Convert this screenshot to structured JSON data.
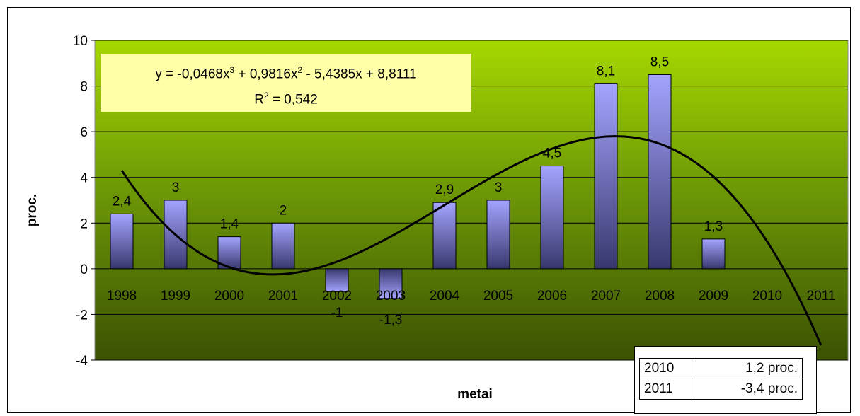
{
  "chart_data": {
    "type": "bar",
    "categories": [
      "1998",
      "1999",
      "2000",
      "2001",
      "2002",
      "2003",
      "2004",
      "2005",
      "2006",
      "2007",
      "2008",
      "2009",
      "2010",
      "2011"
    ],
    "values": [
      2.4,
      3,
      1.4,
      2,
      -1,
      -1.3,
      2.9,
      3,
      4.5,
      8.1,
      8.5,
      1.3,
      null,
      null
    ],
    "data_labels": [
      "2,4",
      "3",
      "1,4",
      "2",
      "-1",
      "-1,3",
      "2,9",
      "3",
      "4,5",
      "8,1",
      "8,5",
      "1,3",
      "",
      ""
    ],
    "ylabel": "proc.",
    "xlabel": "metai",
    "ylim": [
      -4,
      10
    ],
    "yticks": [
      10,
      8,
      6,
      4,
      2,
      0,
      -2,
      -4
    ],
    "ytick_labels": [
      "10",
      "8",
      "6",
      "4",
      "2",
      "0",
      "-2",
      "-4"
    ],
    "grid": true,
    "trendline": {
      "type": "polynomial",
      "order": 3,
      "coefficients": [
        -0.0468,
        0.9816,
        -5.4385,
        8.8111
      ],
      "x_from": 1,
      "x_to": 14
    },
    "colors": {
      "bar_top": "#9a9aff",
      "bar_bottom": "#3c3c7a",
      "plot_top": "#9bd000",
      "plot_bottom": "#3b5203",
      "equation_box": "#ffffa8"
    }
  },
  "equation": {
    "line1_prefix": "y = -0,0468x",
    "sup1": "3",
    "line1_mid": " + 0,9816x",
    "sup2": "2",
    "line1_suffix": " - 5,4385x + 8,8111",
    "line2_prefix": "R",
    "sup3": "2",
    "line2_suffix": " = 0,542"
  },
  "forecast_table": {
    "rows": [
      {
        "year": "2010",
        "value": "1,2 proc."
      },
      {
        "year": "2011",
        "value": "-3,4 proc."
      }
    ]
  }
}
